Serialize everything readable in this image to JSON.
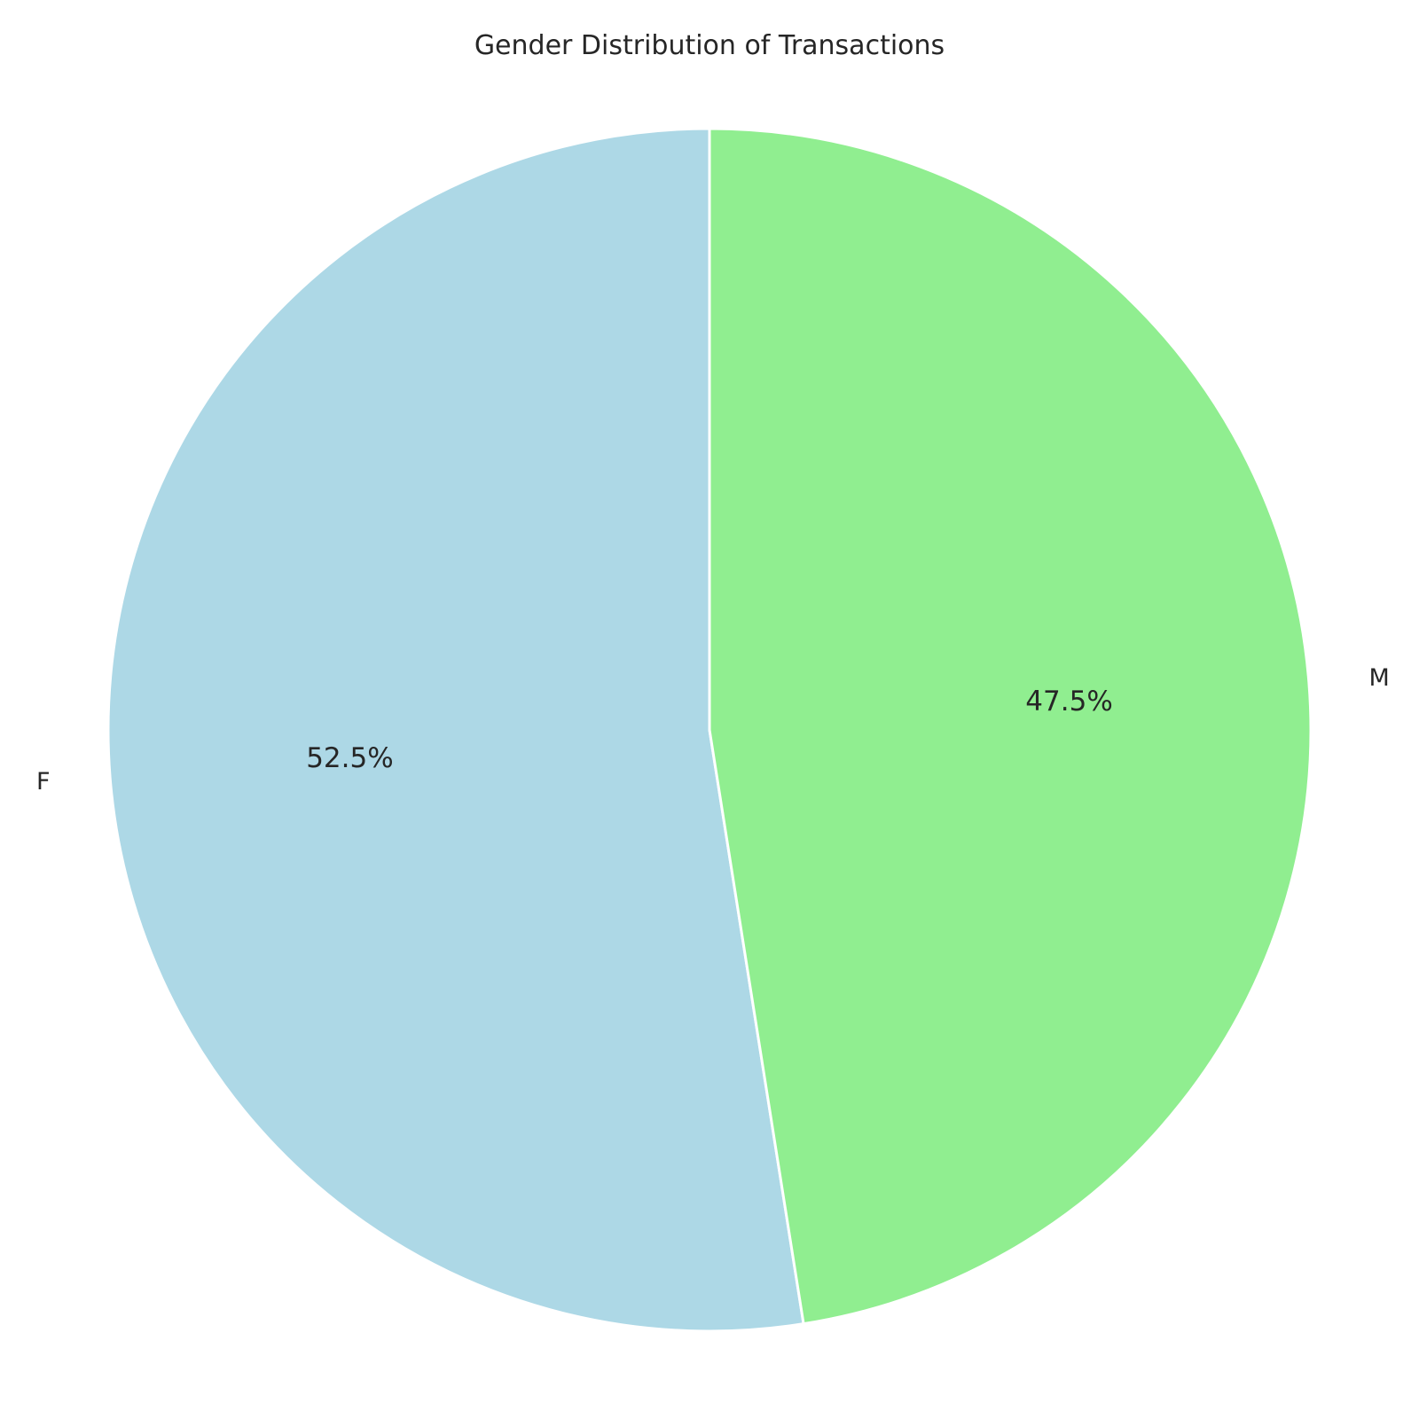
{
  "chart_data": {
    "type": "pie",
    "title": "Gender Distribution of Transactions",
    "categories": [
      "F",
      "M"
    ],
    "values": [
      52.5,
      47.5
    ],
    "value_labels": [
      "52.5%",
      "47.5%"
    ],
    "colors": [
      "#add8e6",
      "#90ee90"
    ],
    "start_angle_deg": 90,
    "direction": "counterclockwise",
    "legend": "none"
  }
}
